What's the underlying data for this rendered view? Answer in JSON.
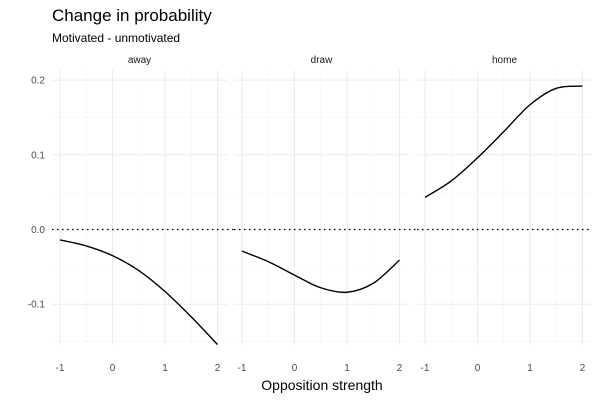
{
  "chart_data": {
    "type": "line",
    "title": "Change in probability",
    "subtitle": "Motivated - unmotivated",
    "xlabel": "Opposition strength",
    "ylabel": "",
    "xlim": [
      -1,
      2
    ],
    "ylim": [
      -0.15,
      0.2
    ],
    "x_ticks": [
      -1,
      0,
      1,
      2
    ],
    "y_ticks": [
      0.2,
      0.1,
      0.0,
      -0.1
    ],
    "y_tick_labels": [
      "0.2",
      "0.1",
      "0.0",
      "-0.1"
    ],
    "x_tick_labels": [
      "-1",
      "0",
      "1",
      "2"
    ],
    "reference_line": {
      "y": 0,
      "style": "dotted"
    },
    "grid": true,
    "legend": "none",
    "panels": [
      {
        "name": "away",
        "x": [
          -1,
          -0.5,
          0,
          0.5,
          1,
          1.5,
          2
        ],
        "y": [
          -0.014,
          -0.022,
          -0.035,
          -0.055,
          -0.083,
          -0.117,
          -0.154
        ]
      },
      {
        "name": "draw",
        "x": [
          -1,
          -0.5,
          0,
          0.5,
          1,
          1.5,
          2
        ],
        "y": [
          -0.029,
          -0.043,
          -0.061,
          -0.078,
          -0.084,
          -0.072,
          -0.041
        ]
      },
      {
        "name": "home",
        "x": [
          -1,
          -0.5,
          0,
          0.5,
          1,
          1.5,
          2
        ],
        "y": [
          0.043,
          0.065,
          0.096,
          0.131,
          0.167,
          0.189,
          0.192
        ]
      }
    ]
  }
}
